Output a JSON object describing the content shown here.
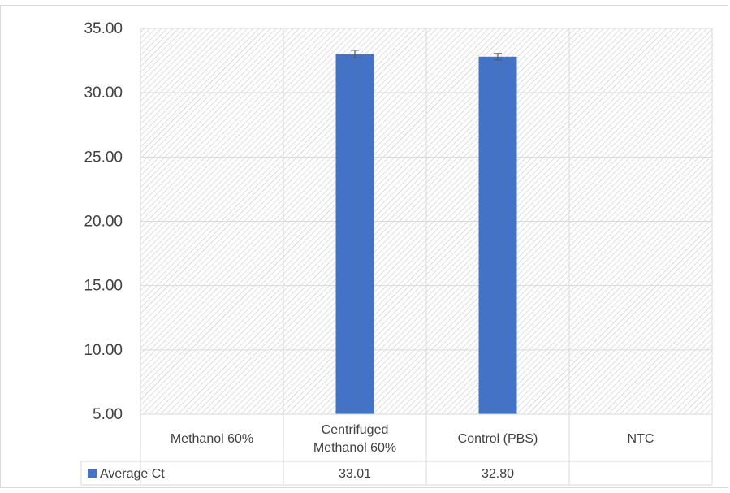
{
  "chart_data": {
    "type": "bar",
    "categories": [
      "Methanol 60%",
      "Centrifuged\nMethanol 60%",
      "Control (PBS)",
      "NTC"
    ],
    "series": [
      {
        "name": "Average Ct",
        "values": [
          null,
          33.01,
          32.8,
          null
        ],
        "value_labels": [
          "",
          "33.01",
          "32.80",
          ""
        ],
        "error": [
          null,
          0.3,
          0.25,
          null
        ],
        "color": "#4472C4"
      }
    ],
    "y_ticks": [
      "5.00",
      "10.00",
      "15.00",
      "20.00",
      "25.00",
      "30.00",
      "35.00"
    ],
    "ylim": [
      5,
      35
    ],
    "grid": true,
    "legend": "data-table-left",
    "data_table": true,
    "title": "",
    "xlabel": "",
    "ylabel": ""
  }
}
